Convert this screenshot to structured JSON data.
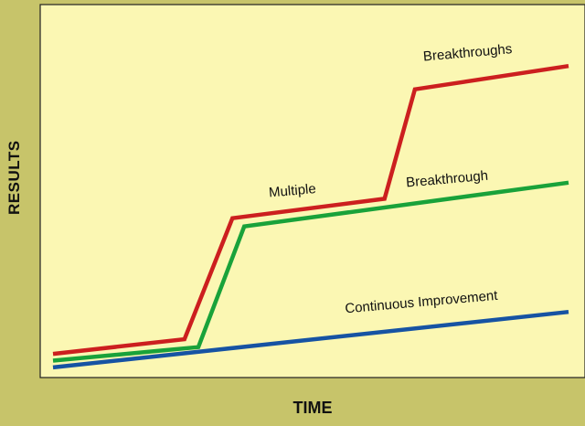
{
  "chart_data": {
    "type": "line",
    "title": "",
    "xlabel": "TIME",
    "ylabel": "RESULTS",
    "xlim": [
      0,
      100
    ],
    "ylim": [
      0,
      100
    ],
    "grid": false,
    "background_color": "#fbf7b3",
    "frame_color": "#c7c46a",
    "series": [
      {
        "name": "Breakthroughs",
        "color": "#cc1f1f",
        "points": [
          [
            0,
            6.8
          ],
          [
            25.5,
            10.7
          ],
          [
            34.8,
            43.0
          ],
          [
            64.3,
            48.2
          ],
          [
            70.2,
            77.4
          ],
          [
            100,
            83.6
          ]
        ]
      },
      {
        "name": "Breakthrough",
        "color": "#19a23a",
        "points": [
          [
            0,
            5.0
          ],
          [
            28.2,
            8.6
          ],
          [
            37.1,
            40.8
          ],
          [
            100,
            52.5
          ]
        ]
      },
      {
        "name": "Continuous Improvement",
        "color": "#1653a3",
        "points": [
          [
            0,
            3.2
          ],
          [
            100,
            18.0
          ]
        ]
      }
    ],
    "annotations": [
      {
        "text": "Breakthroughs",
        "x": 80.5,
        "y": 86.0,
        "rotate": -5,
        "series": 0
      },
      {
        "text": "Multiple",
        "x": 46.5,
        "y": 49.2,
        "rotate": -5,
        "series": 0
      },
      {
        "text": "Breakthrough",
        "x": 76.5,
        "y": 52.3,
        "rotate": -5,
        "series": 1
      },
      {
        "text": "Continuous Improvement",
        "x": 71.5,
        "y": 19.5,
        "rotate": -5,
        "series": 2
      }
    ]
  }
}
